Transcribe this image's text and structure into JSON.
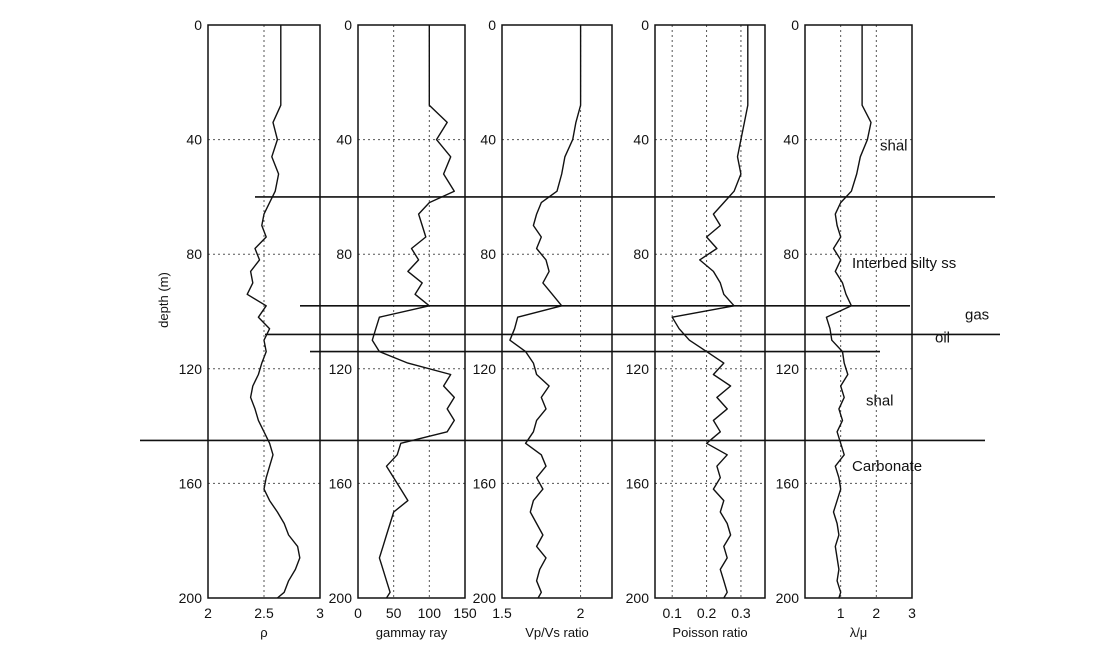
{
  "colors": {
    "trace": "#111111",
    "grid": "#555555",
    "frame": "#111111",
    "background": "#ffffff"
  },
  "chart_data": {
    "type": "line",
    "description_free": true,
    "depth_axis": {
      "label": "depth (m)",
      "range": [
        0,
        200
      ],
      "ticks": [
        0,
        40,
        80,
        120,
        160,
        200
      ],
      "inverted": true
    },
    "grid": "dotted",
    "panels": [
      {
        "id": "density",
        "xlabel": "ρ",
        "xlim": [
          2,
          3
        ],
        "xticks": [
          2,
          2.5,
          3
        ],
        "xtick_labels": [
          "2",
          "2.5",
          "3"
        ],
        "depth": [
          0,
          28,
          34,
          40,
          46,
          52,
          58,
          62,
          66,
          70,
          74,
          78,
          82,
          86,
          90,
          94,
          98,
          102,
          106,
          110,
          114,
          118,
          122,
          126,
          130,
          134,
          138,
          142,
          146,
          150,
          154,
          158,
          162,
          166,
          170,
          174,
          178,
          182,
          186,
          190,
          194,
          198,
          200
        ],
        "values": [
          2.65,
          2.65,
          2.58,
          2.62,
          2.57,
          2.63,
          2.6,
          2.55,
          2.5,
          2.48,
          2.52,
          2.42,
          2.46,
          2.38,
          2.4,
          2.35,
          2.52,
          2.45,
          2.55,
          2.5,
          2.52,
          2.48,
          2.45,
          2.4,
          2.38,
          2.42,
          2.45,
          2.5,
          2.55,
          2.58,
          2.55,
          2.52,
          2.5,
          2.55,
          2.62,
          2.68,
          2.72,
          2.8,
          2.82,
          2.78,
          2.72,
          2.68,
          2.62
        ]
      },
      {
        "id": "gamma-ray",
        "xlabel": "gammay ray",
        "xlim": [
          0,
          150
        ],
        "xticks": [
          0,
          50,
          100,
          150
        ],
        "xtick_labels": [
          "0",
          "50",
          "100",
          "150"
        ],
        "depth": [
          0,
          28,
          34,
          40,
          46,
          52,
          58,
          62,
          66,
          70,
          74,
          78,
          82,
          86,
          90,
          94,
          98,
          102,
          106,
          110,
          114,
          118,
          122,
          126,
          130,
          134,
          138,
          142,
          146,
          150,
          154,
          158,
          162,
          166,
          170,
          174,
          178,
          182,
          186,
          190,
          194,
          198,
          200
        ],
        "values": [
          100,
          100,
          125,
          110,
          130,
          120,
          135,
          100,
          85,
          90,
          95,
          75,
          85,
          70,
          90,
          80,
          100,
          30,
          25,
          20,
          30,
          70,
          130,
          120,
          135,
          125,
          135,
          125,
          60,
          55,
          40,
          50,
          60,
          70,
          50,
          45,
          40,
          35,
          30,
          35,
          40,
          45,
          40
        ]
      },
      {
        "id": "vp-vs",
        "xlabel": "Vp/Vs ratio",
        "xlim": [
          1.5,
          2.2
        ],
        "xticks": [
          1.5,
          2
        ],
        "xtick_labels": [
          "1.5",
          "2"
        ],
        "depth": [
          0,
          28,
          34,
          40,
          46,
          52,
          58,
          62,
          66,
          70,
          74,
          78,
          82,
          86,
          90,
          94,
          98,
          102,
          106,
          110,
          114,
          118,
          122,
          126,
          130,
          134,
          138,
          142,
          146,
          150,
          154,
          158,
          162,
          166,
          170,
          174,
          178,
          182,
          186,
          190,
          194,
          198,
          200
        ],
        "values": [
          2.0,
          2.0,
          1.97,
          1.95,
          1.9,
          1.88,
          1.85,
          1.75,
          1.72,
          1.7,
          1.75,
          1.72,
          1.78,
          1.8,
          1.76,
          1.82,
          1.88,
          1.6,
          1.58,
          1.55,
          1.65,
          1.7,
          1.72,
          1.8,
          1.75,
          1.78,
          1.72,
          1.7,
          1.65,
          1.75,
          1.78,
          1.72,
          1.76,
          1.7,
          1.68,
          1.72,
          1.76,
          1.72,
          1.78,
          1.74,
          1.72,
          1.75,
          1.73
        ]
      },
      {
        "id": "poisson",
        "xlabel": "Poisson ratio",
        "xlim": [
          0.05,
          0.37
        ],
        "xticks": [
          0.1,
          0.2,
          0.3
        ],
        "xtick_labels": [
          "0.1",
          "0.2",
          "0.3"
        ],
        "depth": [
          0,
          28,
          34,
          40,
          46,
          52,
          58,
          62,
          66,
          70,
          74,
          78,
          82,
          86,
          90,
          94,
          98,
          102,
          106,
          110,
          114,
          118,
          122,
          126,
          130,
          134,
          138,
          142,
          146,
          150,
          154,
          158,
          162,
          166,
          170,
          174,
          178,
          182,
          186,
          190,
          194,
          198,
          200
        ],
        "values": [
          0.32,
          0.32,
          0.31,
          0.3,
          0.29,
          0.3,
          0.28,
          0.25,
          0.22,
          0.24,
          0.2,
          0.23,
          0.18,
          0.22,
          0.24,
          0.25,
          0.28,
          0.1,
          0.12,
          0.15,
          0.2,
          0.25,
          0.22,
          0.27,
          0.23,
          0.26,
          0.22,
          0.24,
          0.2,
          0.26,
          0.23,
          0.24,
          0.22,
          0.25,
          0.24,
          0.26,
          0.27,
          0.25,
          0.26,
          0.24,
          0.25,
          0.26,
          0.25
        ]
      },
      {
        "id": "lambda-mu",
        "xlabel": "λ/μ",
        "xlim": [
          0,
          3
        ],
        "xticks": [
          1,
          2,
          3
        ],
        "xtick_labels": [
          "1",
          "2",
          "3"
        ],
        "depth": [
          0,
          28,
          34,
          40,
          46,
          52,
          58,
          62,
          66,
          70,
          74,
          78,
          82,
          86,
          90,
          94,
          98,
          102,
          106,
          110,
          114,
          118,
          122,
          126,
          130,
          134,
          138,
          142,
          146,
          150,
          154,
          158,
          162,
          166,
          170,
          174,
          178,
          182,
          186,
          190,
          194,
          198,
          200
        ],
        "values": [
          1.6,
          1.6,
          1.85,
          1.75,
          1.55,
          1.45,
          1.3,
          1.0,
          0.85,
          0.9,
          1.0,
          0.8,
          1.0,
          0.85,
          1.05,
          1.15,
          1.3,
          0.6,
          0.7,
          0.75,
          1.05,
          1.1,
          1.2,
          1.0,
          1.1,
          0.95,
          1.05,
          0.9,
          1.0,
          1.1,
          0.85,
          0.95,
          1.0,
          0.9,
          0.8,
          0.9,
          0.95,
          0.85,
          0.9,
          0.95,
          0.9,
          1.0,
          0.95
        ]
      }
    ],
    "boundary_depths": [
      60,
      98,
      108,
      114,
      145
    ],
    "annotations": [
      {
        "text": "shal",
        "depth": 42
      },
      {
        "text": "Interbed silty ss",
        "depth": 83
      },
      {
        "text": "gas",
        "depth": 101
      },
      {
        "text": "oil",
        "depth": 109
      },
      {
        "text": "shal",
        "depth": 131
      },
      {
        "text": "Carbonate",
        "depth": 154
      }
    ]
  }
}
